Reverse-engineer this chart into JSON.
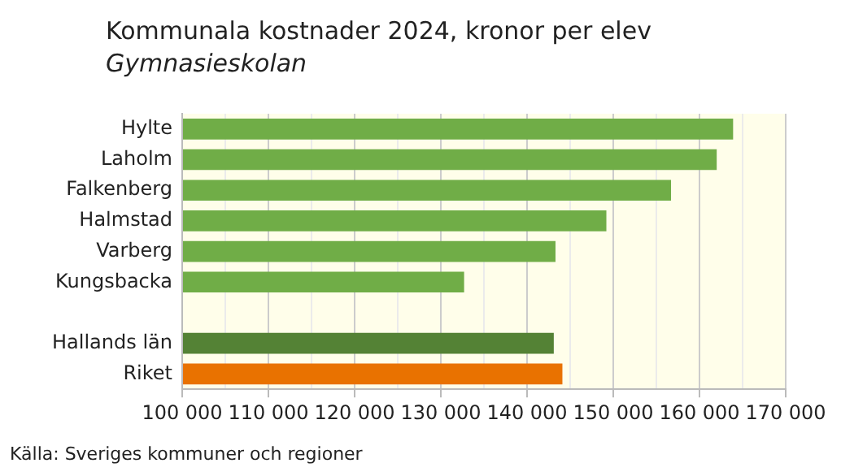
{
  "chart_data": {
    "type": "bar",
    "orientation": "horizontal",
    "title": "Kommunala kostnader 2024, kronor per elev",
    "subtitle": "Gymnasieskolan",
    "categories": [
      "Hylte",
      "Laholm",
      "Falkenberg",
      "Halmstad",
      "Varberg",
      "Kungsbacka",
      null,
      "Hallands län",
      "Riket"
    ],
    "values": [
      163900,
      162000,
      156700,
      149200,
      143300,
      132700,
      null,
      143100,
      144100
    ],
    "colors": [
      "#70ad47",
      "#70ad47",
      "#70ad47",
      "#70ad47",
      "#70ad47",
      "#70ad47",
      "#70ad47",
      "#548235",
      "#e97200"
    ],
    "xlim": [
      100000,
      170000
    ],
    "xticks": [
      {
        "value": 100000,
        "label": "100 000"
      },
      {
        "value": 105000,
        "label": null
      },
      {
        "value": 110000,
        "label": "110 000"
      },
      {
        "value": 115000,
        "label": null
      },
      {
        "value": 120000,
        "label": "120 000"
      },
      {
        "value": 125000,
        "label": null
      },
      {
        "value": 130000,
        "label": "130 000"
      },
      {
        "value": 135000,
        "label": null
      },
      {
        "value": 140000,
        "label": "140 000"
      },
      {
        "value": 145000,
        "label": null
      },
      {
        "value": 150000,
        "label": "150 000"
      },
      {
        "value": 155000,
        "label": null
      },
      {
        "value": 160000,
        "label": "160 000"
      },
      {
        "value": 165000,
        "label": null
      },
      {
        "value": 170000,
        "label": "170 000"
      }
    ],
    "grid": "x",
    "legend": false,
    "annotations": [
      "Källa: Sveriges kommuner och regioner"
    ]
  }
}
